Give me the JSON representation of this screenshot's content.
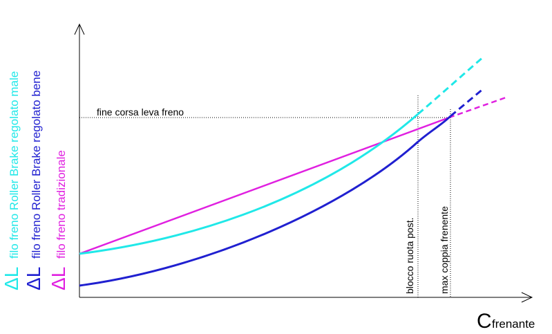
{
  "legend": [
    {
      "symbol": "ΔL",
      "label": "filo freno Roller Brake regolato male"
    },
    {
      "symbol": "ΔL",
      "label": "filo freno Roller Brake regolato bene"
    },
    {
      "symbol": "ΔL",
      "label": "filo freno tradizionale"
    }
  ],
  "annotations": {
    "horizontal": "fine corsa leva freno",
    "vertical_1": "blocco ruota post.",
    "vertical_2": "max coppia frenente"
  },
  "x_axis": {
    "symbol": "C",
    "subscript": "frenante"
  }
}
